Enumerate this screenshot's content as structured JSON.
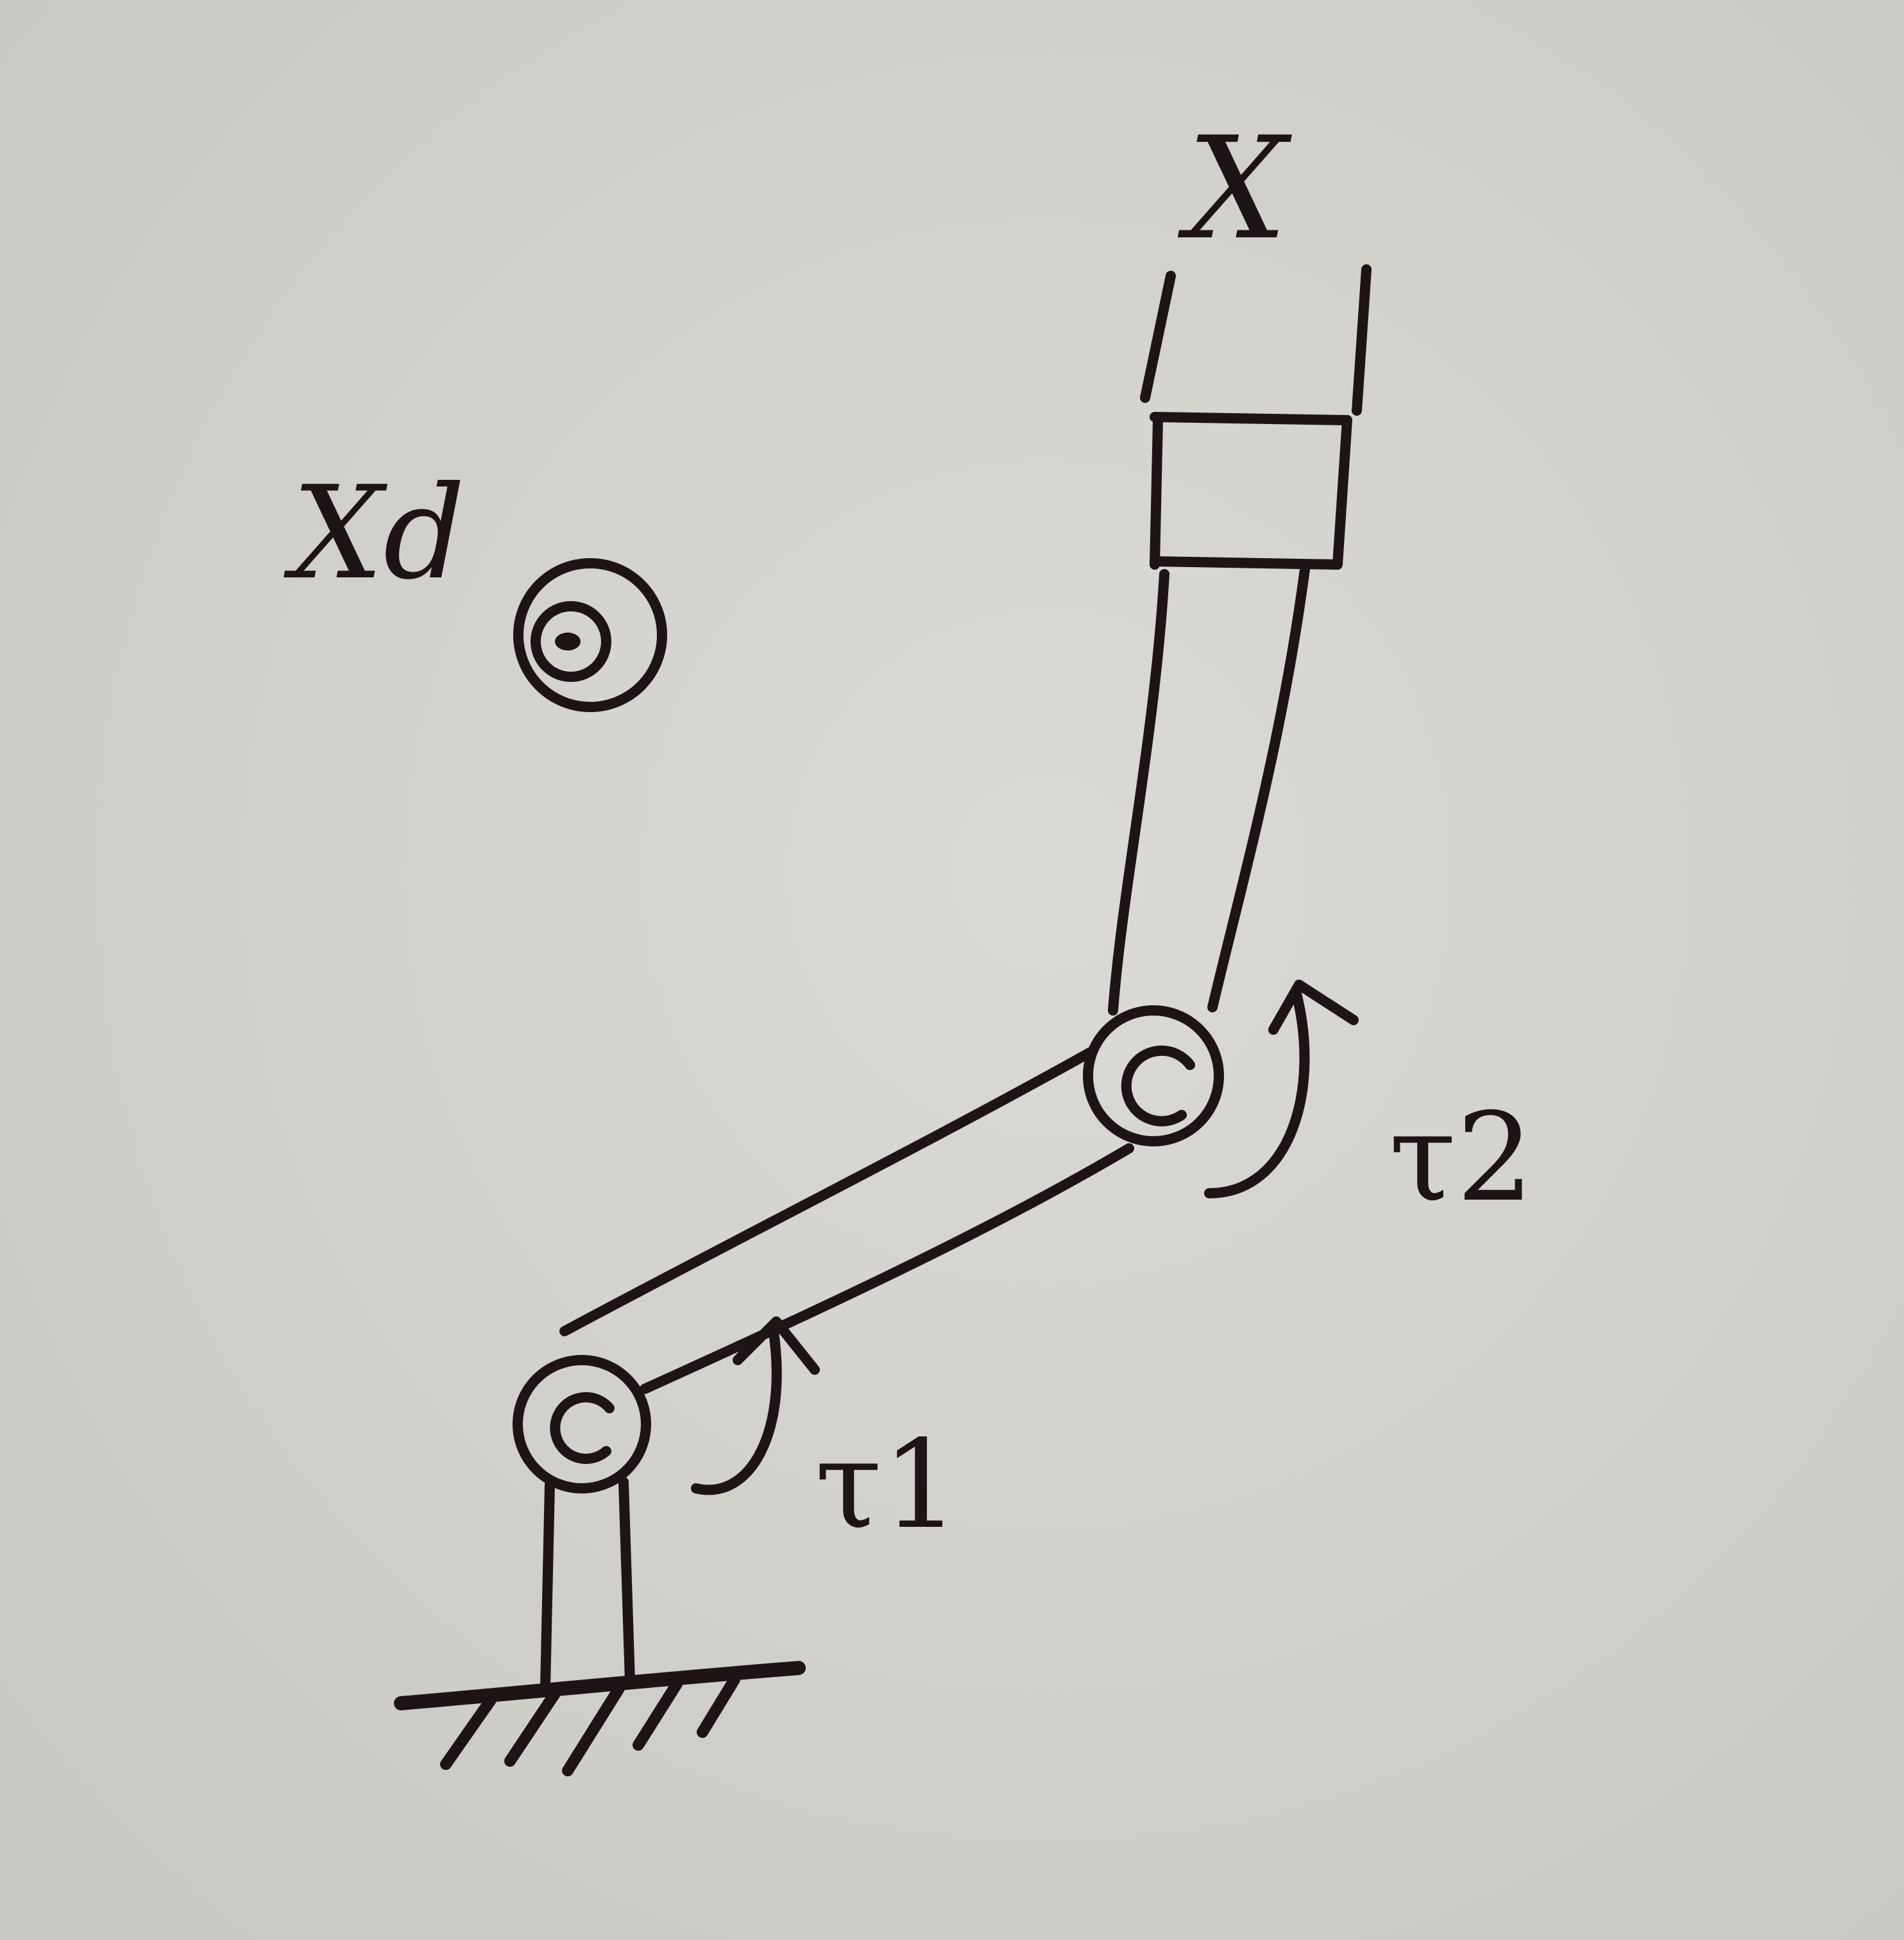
{
  "labels": {
    "end_effector": "X",
    "desired_position": "Xd",
    "torque_1": "τ1",
    "torque_2": "τ2"
  },
  "colors": {
    "paper": "#d6d4cf",
    "ink": "#1f1415"
  }
}
